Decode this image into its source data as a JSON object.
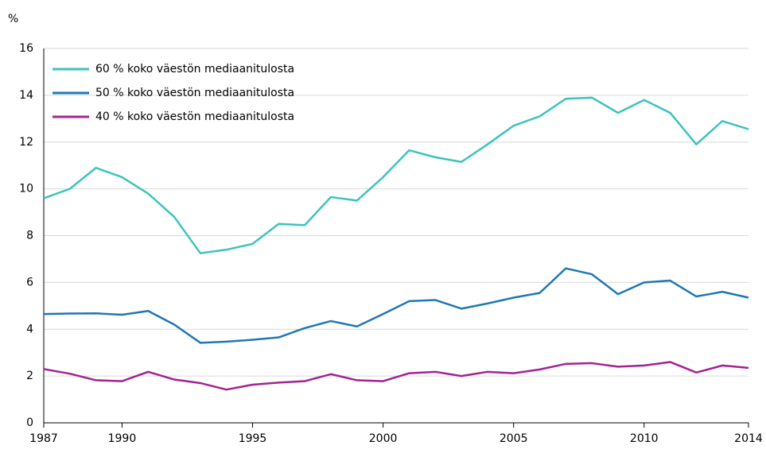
{
  "chart_data": {
    "type": "line",
    "y_label": "%",
    "x": [
      1987,
      1988,
      1989,
      1990,
      1991,
      1992,
      1993,
      1994,
      1995,
      1996,
      1997,
      1998,
      1999,
      2000,
      2001,
      2002,
      2003,
      2004,
      2005,
      2006,
      2007,
      2008,
      2009,
      2010,
      2011,
      2012,
      2013,
      2014
    ],
    "series": [
      {
        "name": "60 % koko väestön mediaanitulosta",
        "color": "#3cc3bd",
        "values": [
          9.6,
          10.0,
          10.9,
          10.5,
          9.8,
          8.8,
          7.25,
          7.4,
          7.65,
          8.5,
          8.45,
          9.65,
          9.5,
          10.5,
          11.65,
          11.35,
          11.15,
          11.9,
          12.7,
          13.1,
          13.85,
          13.9,
          13.25,
          13.8,
          13.25,
          11.9,
          12.9,
          12.55
        ]
      },
      {
        "name": "50 % koko väestön mediaanitulosta",
        "color": "#1f77b4",
        "values": [
          4.65,
          4.67,
          4.68,
          4.62,
          4.78,
          4.2,
          3.42,
          3.47,
          3.55,
          3.65,
          4.05,
          4.35,
          4.12,
          4.65,
          5.2,
          5.25,
          4.88,
          5.1,
          5.35,
          5.55,
          6.6,
          6.35,
          5.5,
          6.0,
          6.08,
          5.4,
          5.6,
          5.35
        ]
      },
      {
        "name": "40 % koko väestön mediaanitulosta",
        "color": "#a3228f",
        "values": [
          2.3,
          2.1,
          1.82,
          1.78,
          2.18,
          1.85,
          1.7,
          1.42,
          1.63,
          1.72,
          1.78,
          2.08,
          1.82,
          1.78,
          2.12,
          2.18,
          2.0,
          2.18,
          2.12,
          2.28,
          2.52,
          2.55,
          2.4,
          2.45,
          2.6,
          2.15,
          2.45,
          2.35
        ]
      }
    ],
    "xlim": [
      1987,
      2014
    ],
    "xticks": [
      1987,
      1990,
      1995,
      2000,
      2005,
      2010,
      2014
    ],
    "ylim": [
      0,
      16
    ],
    "yticks": [
      0,
      2,
      4,
      6,
      8,
      10,
      12,
      14,
      16
    ],
    "grid": true,
    "legend": "top-left"
  }
}
